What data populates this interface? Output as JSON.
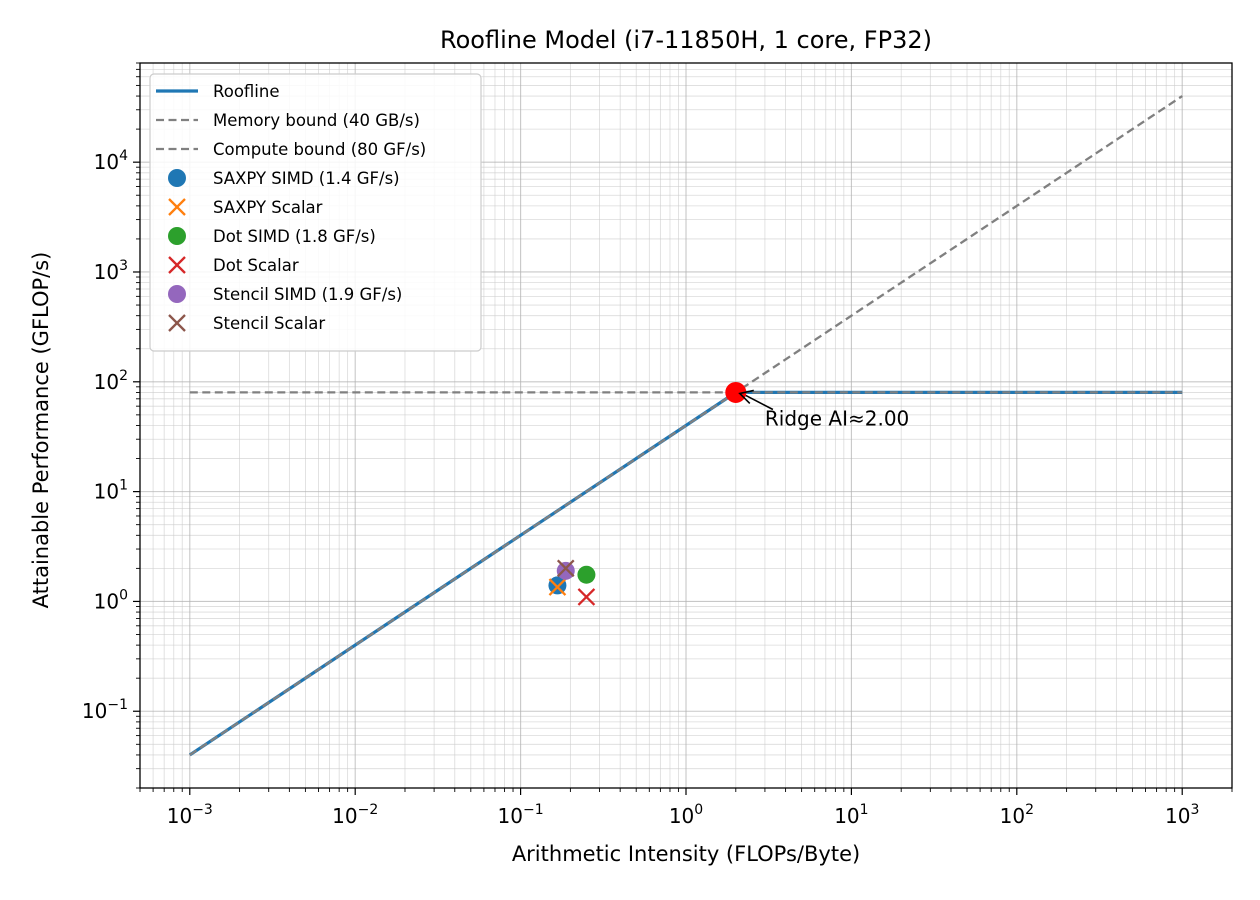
{
  "chart_data": {
    "type": "line",
    "title": "Roofline Model (i7-11850H, 1 core, FP32)",
    "xlabel": "Arithmetic Intensity (FLOPs/Byte)",
    "ylabel": "Attainable Performance (GFLOP/s)",
    "xscale": "log",
    "yscale": "log",
    "xlim": [
      0.0005,
      2000
    ],
    "ylim": [
      0.02,
      80000
    ],
    "grid": "both",
    "legend_position": "top-left",
    "x_ticks": [
      {
        "value": 0.001,
        "base": "10",
        "exp": "−3"
      },
      {
        "value": 0.01,
        "base": "10",
        "exp": "−2"
      },
      {
        "value": 0.1,
        "base": "10",
        "exp": "−1"
      },
      {
        "value": 1,
        "base": "10",
        "exp": "0"
      },
      {
        "value": 10,
        "base": "10",
        "exp": "1"
      },
      {
        "value": 100,
        "base": "10",
        "exp": "2"
      },
      {
        "value": 1000,
        "base": "10",
        "exp": "3"
      }
    ],
    "y_ticks": [
      {
        "value": 0.1,
        "base": "10",
        "exp": "−1"
      },
      {
        "value": 1,
        "base": "10",
        "exp": "0"
      },
      {
        "value": 10,
        "base": "10",
        "exp": "1"
      },
      {
        "value": 100,
        "base": "10",
        "exp": "2"
      },
      {
        "value": 1000,
        "base": "10",
        "exp": "3"
      },
      {
        "value": 10000,
        "base": "10",
        "exp": "4"
      }
    ],
    "lines": [
      {
        "name": "Roofline",
        "style": "solid",
        "color": "#1f77b4",
        "x": [
          0.001,
          2,
          1000
        ],
        "y": [
          0.04,
          80,
          80
        ]
      },
      {
        "name": "Memory bound (40 GB/s)",
        "style": "dashed",
        "color": "#808080",
        "x": [
          0.001,
          1000
        ],
        "y": [
          0.04,
          40000
        ]
      },
      {
        "name": "Compute bound (80 GF/s)",
        "style": "dashed",
        "color": "#808080",
        "x": [
          0.001,
          1000
        ],
        "y": [
          80,
          80
        ]
      }
    ],
    "points": [
      {
        "name": "SAXPY SIMD (1.4 GF/s)",
        "marker": "circle",
        "color": "#1f77b4",
        "x": 0.167,
        "y": 1.4
      },
      {
        "name": "SAXPY Scalar",
        "marker": "x",
        "color": "#ff7f0e",
        "x": 0.167,
        "y": 1.35
      },
      {
        "name": "Dot SIMD (1.8 GF/s)",
        "marker": "circle",
        "color": "#2ca02c",
        "x": 0.25,
        "y": 1.75
      },
      {
        "name": "Dot Scalar",
        "marker": "x",
        "color": "#d62728",
        "x": 0.25,
        "y": 1.1
      },
      {
        "name": "Stencil SIMD (1.9 GF/s)",
        "marker": "circle",
        "color": "#9467bd",
        "x": 0.1875,
        "y": 1.9
      },
      {
        "name": "Stencil Scalar",
        "marker": "x",
        "color": "#8c564b",
        "x": 0.1875,
        "y": 2.0
      }
    ],
    "ridge_point": {
      "x": 2,
      "y": 80,
      "color": "#ff0000"
    },
    "annotation": {
      "text": "Ridge AI≈2.00",
      "x": 3,
      "y": 40
    }
  }
}
